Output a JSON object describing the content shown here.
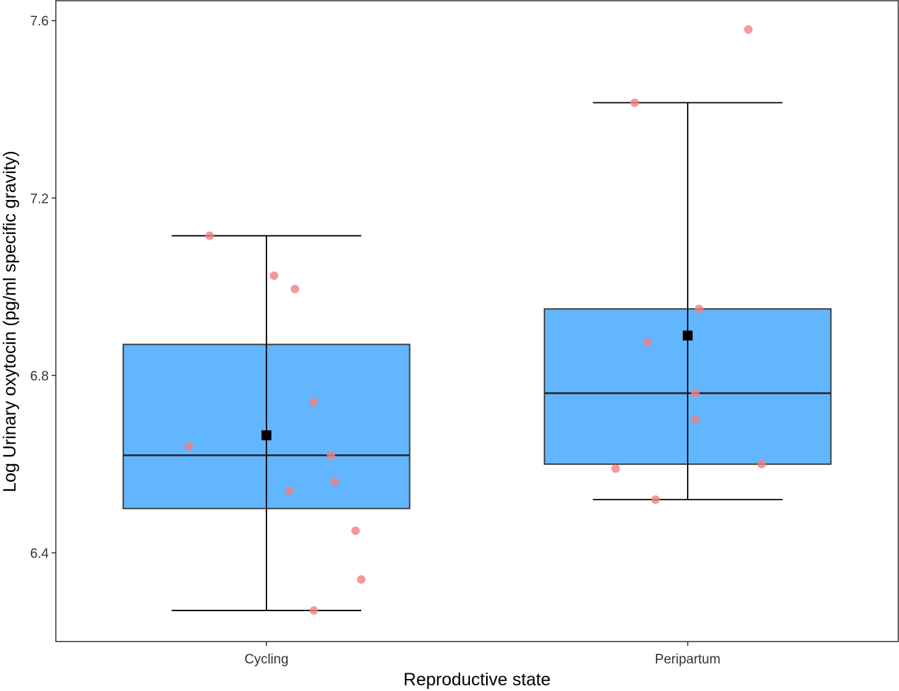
{
  "chart_data": {
    "type": "box",
    "xlabel": "Reproductive state",
    "ylabel": "Log Urinary oxytocin (pg/ml specific gravity)",
    "categories": [
      "Cycling",
      "Peripartum"
    ],
    "ylim": [
      6.2,
      7.645
    ],
    "yticks": [
      6.4,
      6.8,
      7.2,
      7.6
    ],
    "ytick_labels": [
      "6.4",
      "6.8",
      "7.2",
      "7.6"
    ],
    "grid": false,
    "legend": "none",
    "boxes": [
      {
        "category": "Cycling",
        "q1": 6.5,
        "median": 6.62,
        "q3": 6.87,
        "whisker_low": 6.27,
        "whisker_high": 7.115,
        "mean": 6.665
      },
      {
        "category": "Peripartum",
        "q1": 6.6,
        "median": 6.76,
        "q3": 6.95,
        "whisker_low": 6.52,
        "whisker_high": 7.415,
        "mean": 6.89
      }
    ],
    "points": [
      {
        "category": "Cycling",
        "y": 7.115,
        "jitter": -0.3
      },
      {
        "category": "Cycling",
        "y": 7.025,
        "jitter": 0.04
      },
      {
        "category": "Cycling",
        "y": 6.995,
        "jitter": 0.15
      },
      {
        "category": "Cycling",
        "y": 6.74,
        "jitter": 0.25
      },
      {
        "category": "Cycling",
        "y": 6.64,
        "jitter": -0.41
      },
      {
        "category": "Cycling",
        "y": 6.62,
        "jitter": 0.34
      },
      {
        "category": "Cycling",
        "y": 6.56,
        "jitter": 0.36
      },
      {
        "category": "Cycling",
        "y": 6.54,
        "jitter": 0.12
      },
      {
        "category": "Cycling",
        "y": 6.45,
        "jitter": 0.47
      },
      {
        "category": "Cycling",
        "y": 6.34,
        "jitter": 0.5
      },
      {
        "category": "Cycling",
        "y": 6.27,
        "jitter": 0.25
      },
      {
        "category": "Peripartum",
        "y": 7.58,
        "jitter": 0.32
      },
      {
        "category": "Peripartum",
        "y": 7.415,
        "jitter": -0.28
      },
      {
        "category": "Peripartum",
        "y": 6.95,
        "jitter": 0.06
      },
      {
        "category": "Peripartum",
        "y": 6.875,
        "jitter": -0.21
      },
      {
        "category": "Peripartum",
        "y": 6.76,
        "jitter": 0.04
      },
      {
        "category": "Peripartum",
        "y": 6.7,
        "jitter": 0.04
      },
      {
        "category": "Peripartum",
        "y": 6.6,
        "jitter": 0.39
      },
      {
        "category": "Peripartum",
        "y": 6.59,
        "jitter": -0.38
      },
      {
        "category": "Peripartum",
        "y": 6.52,
        "jitter": -0.17
      }
    ],
    "colors": {
      "box_fill": "#61b6fd",
      "point": "#f08080",
      "mean_marker": "#000000",
      "line": "#000000"
    }
  }
}
